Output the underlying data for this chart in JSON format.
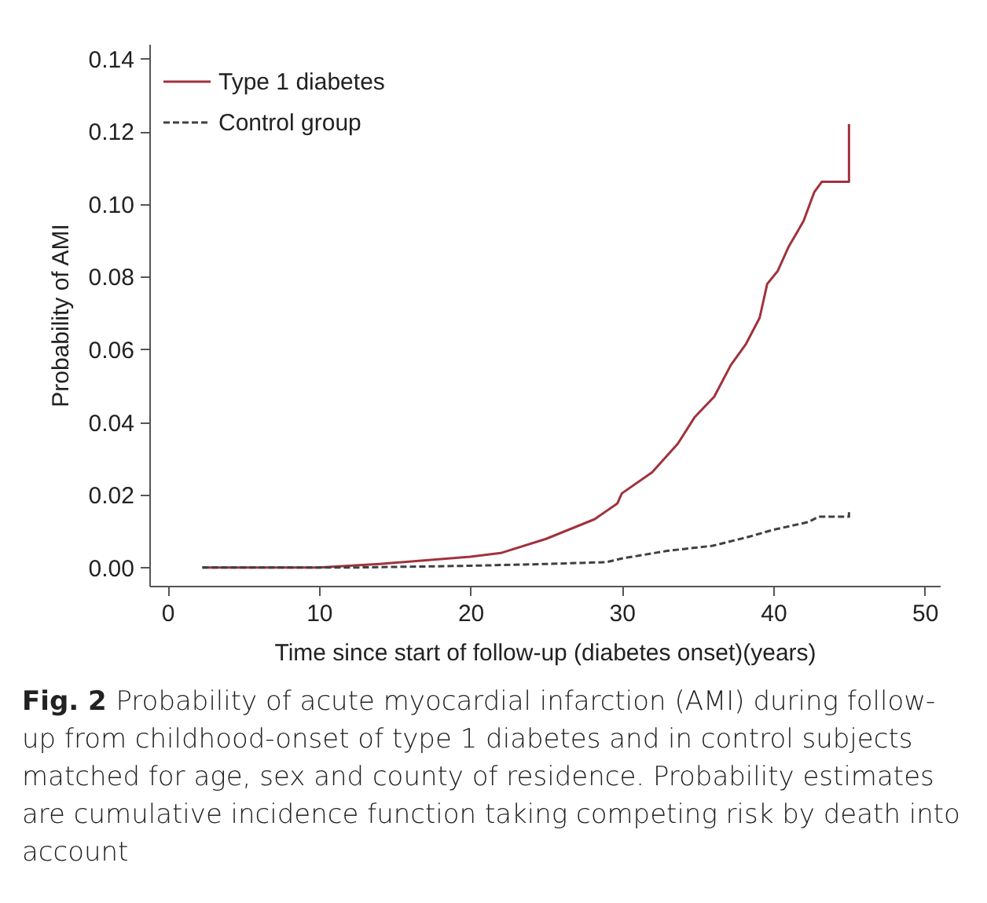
{
  "chart_data": {
    "type": "line",
    "xlabel": "Time since start of follow-up (diabetes onset)(years)",
    "ylabel": "Probability of AMI",
    "xlim": [
      -1.2,
      51
    ],
    "xticks": [
      0,
      10,
      20,
      30,
      40,
      50
    ],
    "ylim": [
      -0.005,
      0.144
    ],
    "yticks": [
      {
        "value": 0,
        "label": "0.00"
      },
      {
        "value": 0.02,
        "label": "0.02"
      },
      {
        "value": 0.04,
        "label": "0.04"
      },
      {
        "value": 0.06,
        "label": "0.06"
      },
      {
        "value": 0.08,
        "label": "0.08"
      },
      {
        "value": 0.1,
        "label": "0.10"
      },
      {
        "value": 0.12,
        "label": "0.12"
      },
      {
        "value": 0.14,
        "label": "0.14"
      }
    ],
    "legend": "top left",
    "grid": false,
    "series": [
      {
        "name": "Type 1 diabetes",
        "color": "#a0323c",
        "line_style": "solid",
        "x": [
          2.3,
          10,
          14,
          20,
          22,
          25,
          28.2,
          29.7,
          30,
          32,
          33.7,
          34.8,
          36.1,
          37.2,
          38.2,
          39.1,
          39.6,
          40.3,
          41,
          41.5,
          42,
          42.7,
          43.2,
          45,
          45
        ],
        "values": [
          0,
          0,
          0.001,
          0.003,
          0.004,
          0.0079,
          0.0133,
          0.0176,
          0.0204,
          0.0262,
          0.0341,
          0.0413,
          0.047,
          0.0557,
          0.0615,
          0.0687,
          0.078,
          0.0816,
          0.0881,
          0.0917,
          0.0953,
          0.1032,
          0.1061,
          0.1061,
          0.122
        ]
      },
      {
        "name": "Control group",
        "color": "#404040",
        "line_style": "dashed",
        "x": [
          2.3,
          12,
          20,
          25,
          29,
          30,
          33,
          36,
          38.5,
          40,
          42.3,
          43,
          45,
          45
        ],
        "values": [
          0,
          0,
          0.0005,
          0.001,
          0.0015,
          0.0025,
          0.0046,
          0.006,
          0.0086,
          0.0104,
          0.0125,
          0.014,
          0.014,
          0.016
        ]
      }
    ],
    "annotations": [
      "Fig. 2",
      "Probability of acute myocardial infarction (AMI) during follow-up from childhood-onset of type 1 diabetes and in control subjects matched for age, sex and county of residence. Probability estimates are cumulative incidence function taking competing risk by death into account"
    ]
  }
}
